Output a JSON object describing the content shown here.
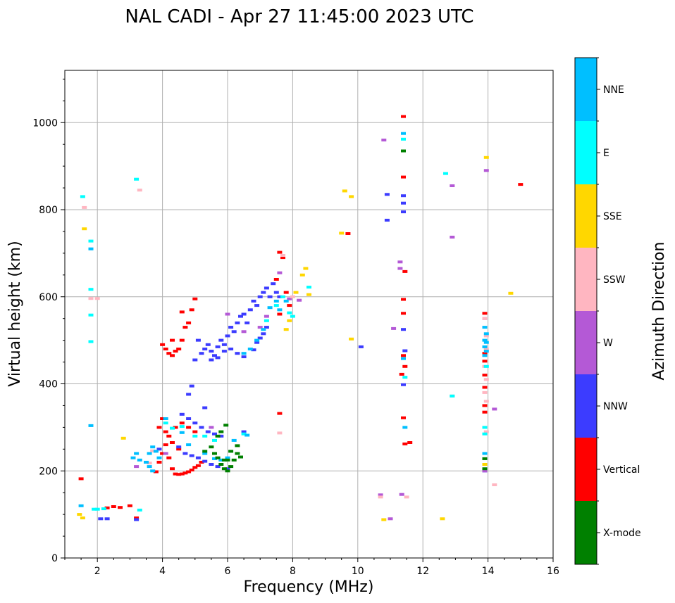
{
  "chart_data": {
    "type": "scatter",
    "title": "NAL CADI - Apr 27 11:45:00 2023 UTC",
    "xlabel": "Frequency (MHz)",
    "ylabel": "Virtual height (km)",
    "xlim": [
      1,
      16
    ],
    "ylim": [
      0,
      1120
    ],
    "xticks": [
      2,
      4,
      6,
      8,
      10,
      12,
      14,
      16
    ],
    "yticks": [
      0,
      200,
      400,
      600,
      800,
      1000
    ],
    "grid": true,
    "colorbar": {
      "label": "Azimuth Direction",
      "position": "right",
      "categories": [
        {
          "name": "X-mode",
          "color": "#008000"
        },
        {
          "name": "Vertical",
          "color": "#ff0000"
        },
        {
          "name": "NNW",
          "color": "#3c3cff"
        },
        {
          "name": "W",
          "color": "#b459d6"
        },
        {
          "name": "SSW",
          "color": "#ffb6c1"
        },
        {
          "name": "SSE",
          "color": "#ffd700"
        },
        {
          "name": "E",
          "color": "#00ffff"
        },
        {
          "name": "NNE",
          "color": "#00bfff"
        }
      ]
    },
    "series": [
      {
        "name": "Vertical",
        "points": [
          [
            1.5,
            182
          ],
          [
            2.3,
            115
          ],
          [
            2.5,
            118
          ],
          [
            2.7,
            116
          ],
          [
            3.0,
            120
          ],
          [
            3.2,
            92
          ],
          [
            3.8,
            198
          ],
          [
            3.9,
            220
          ],
          [
            4.0,
            240
          ],
          [
            4.0,
            320
          ],
          [
            4.1,
            260
          ],
          [
            4.2,
            230
          ],
          [
            4.3,
            205
          ],
          [
            4.4,
            193
          ],
          [
            4.5,
            192
          ],
          [
            4.6,
            193
          ],
          [
            4.7,
            195
          ],
          [
            4.8,
            198
          ],
          [
            4.9,
            202
          ],
          [
            5.0,
            208
          ],
          [
            5.1,
            212
          ],
          [
            5.2,
            220
          ],
          [
            4.2,
            280
          ],
          [
            4.4,
            300
          ],
          [
            4.6,
            310
          ],
          [
            4.8,
            300
          ],
          [
            5.0,
            290
          ],
          [
            3.9,
            300
          ],
          [
            4.1,
            290
          ],
          [
            4.3,
            265
          ],
          [
            4.5,
            250
          ],
          [
            4.0,
            490
          ],
          [
            4.1,
            480
          ],
          [
            4.2,
            470
          ],
          [
            4.3,
            465
          ],
          [
            4.4,
            475
          ],
          [
            4.5,
            480
          ],
          [
            4.6,
            500
          ],
          [
            4.7,
            530
          ],
          [
            4.8,
            540
          ],
          [
            4.9,
            570
          ],
          [
            5.0,
            595
          ],
          [
            4.6,
            565
          ],
          [
            4.3,
            500
          ],
          [
            7.6,
            702
          ],
          [
            7.7,
            690
          ],
          [
            7.5,
            640
          ],
          [
            7.8,
            610
          ],
          [
            7.9,
            580
          ],
          [
            7.6,
            560
          ],
          [
            9.7,
            745
          ],
          [
            11.4,
            1014
          ],
          [
            11.4,
            875
          ],
          [
            11.45,
            658
          ],
          [
            11.4,
            594
          ],
          [
            11.4,
            562
          ],
          [
            11.35,
            422
          ],
          [
            11.4,
            465
          ],
          [
            11.45,
            440
          ],
          [
            11.4,
            322
          ],
          [
            11.45,
            262
          ],
          [
            11.6,
            265
          ],
          [
            7.6,
            332
          ],
          [
            13.9,
            562
          ],
          [
            13.9,
            470
          ],
          [
            13.9,
            452
          ],
          [
            13.9,
            420
          ],
          [
            13.9,
            392
          ],
          [
            13.9,
            350
          ],
          [
            13.9,
            335
          ],
          [
            15.0,
            858
          ]
        ]
      },
      {
        "name": "NNW",
        "points": [
          [
            2.1,
            90
          ],
          [
            2.3,
            90
          ],
          [
            3.2,
            88
          ],
          [
            5.2,
            470
          ],
          [
            5.3,
            480
          ],
          [
            5.4,
            490
          ],
          [
            5.5,
            475
          ],
          [
            5.6,
            465
          ],
          [
            5.7,
            485
          ],
          [
            5.8,
            500
          ],
          [
            5.9,
            490
          ],
          [
            6.0,
            510
          ],
          [
            6.1,
            530
          ],
          [
            6.2,
            520
          ],
          [
            6.3,
            540
          ],
          [
            6.4,
            555
          ],
          [
            6.5,
            560
          ],
          [
            6.6,
            540
          ],
          [
            6.7,
            570
          ],
          [
            6.8,
            590
          ],
          [
            6.9,
            580
          ],
          [
            7.0,
            600
          ],
          [
            7.1,
            610
          ],
          [
            7.2,
            620
          ],
          [
            7.3,
            600
          ],
          [
            7.4,
            630
          ],
          [
            7.5,
            610
          ],
          [
            7.6,
            600
          ],
          [
            6.8,
            478
          ],
          [
            6.9,
            495
          ],
          [
            7.0,
            505
          ],
          [
            7.1,
            515
          ],
          [
            7.2,
            530
          ],
          [
            6.5,
            462
          ],
          [
            6.3,
            470
          ],
          [
            6.1,
            480
          ],
          [
            5.9,
            475
          ],
          [
            5.7,
            460
          ],
          [
            5.5,
            455
          ],
          [
            5.1,
            500
          ],
          [
            5.0,
            455
          ],
          [
            4.6,
            330
          ],
          [
            4.8,
            320
          ],
          [
            5.0,
            310
          ],
          [
            5.2,
            300
          ],
          [
            5.4,
            290
          ],
          [
            5.6,
            285
          ],
          [
            5.8,
            280
          ],
          [
            5.3,
            345
          ],
          [
            4.9,
            395
          ],
          [
            4.8,
            376
          ],
          [
            3.9,
            250
          ],
          [
            4.5,
            255
          ],
          [
            4.7,
            240
          ],
          [
            4.9,
            235
          ],
          [
            5.1,
            230
          ],
          [
            5.3,
            222
          ],
          [
            5.5,
            215
          ],
          [
            5.7,
            210
          ],
          [
            6.0,
            205
          ],
          [
            6.5,
            290
          ],
          [
            10.1,
            485
          ],
          [
            10.9,
            835
          ],
          [
            10.9,
            776
          ],
          [
            11.4,
            832
          ],
          [
            11.4,
            815
          ],
          [
            11.4,
            795
          ],
          [
            11.45,
            476
          ],
          [
            11.4,
            398
          ],
          [
            11.4,
            525
          ],
          [
            13.9,
            200
          ]
        ]
      },
      {
        "name": "W",
        "points": [
          [
            3.2,
            210
          ],
          [
            4.1,
            240
          ],
          [
            5.5,
            300
          ],
          [
            6.0,
            560
          ],
          [
            6.5,
            520
          ],
          [
            7.0,
            530
          ],
          [
            7.2,
            555
          ],
          [
            7.6,
            655
          ],
          [
            7.9,
            595
          ],
          [
            8.2,
            592
          ],
          [
            10.8,
            960
          ],
          [
            10.7,
            145
          ],
          [
            11.1,
            527
          ],
          [
            11.3,
            680
          ],
          [
            11.3,
            665
          ],
          [
            11.35,
            146
          ],
          [
            11.0,
            90
          ],
          [
            12.9,
            855
          ],
          [
            12.9,
            737
          ],
          [
            13.95,
            890
          ],
          [
            14.2,
            342
          ],
          [
            13.9,
            550
          ],
          [
            13.9,
            200
          ]
        ]
      },
      {
        "name": "SSW",
        "points": [
          [
            1.6,
            805
          ],
          [
            1.8,
            596
          ],
          [
            2.0,
            596
          ],
          [
            3.3,
            845
          ],
          [
            3.6,
            218
          ],
          [
            3.7,
            246
          ],
          [
            7.6,
            287
          ],
          [
            7.7,
            695
          ],
          [
            8.0,
            600
          ],
          [
            10.7,
            140
          ],
          [
            11.5,
            140
          ],
          [
            13.9,
            550
          ],
          [
            13.95,
            510
          ],
          [
            13.95,
            480
          ],
          [
            13.9,
            440
          ],
          [
            13.95,
            410
          ],
          [
            13.9,
            380
          ],
          [
            13.95,
            360
          ],
          [
            13.9,
            300
          ],
          [
            13.95,
            290
          ],
          [
            14.2,
            168
          ],
          [
            12.9,
            372
          ]
        ]
      },
      {
        "name": "SSE",
        "points": [
          [
            1.6,
            756
          ],
          [
            1.45,
            100
          ],
          [
            1.55,
            92
          ],
          [
            2.8,
            275
          ],
          [
            7.8,
            525
          ],
          [
            7.9,
            545
          ],
          [
            8.1,
            610
          ],
          [
            8.3,
            650
          ],
          [
            8.4,
            665
          ],
          [
            8.5,
            605
          ],
          [
            9.6,
            843
          ],
          [
            9.8,
            830
          ],
          [
            9.5,
            746
          ],
          [
            9.8,
            503
          ],
          [
            10.8,
            88
          ],
          [
            12.6,
            90
          ],
          [
            13.95,
            920
          ],
          [
            14.7,
            608
          ],
          [
            13.9,
            215
          ]
        ]
      },
      {
        "name": "E",
        "points": [
          [
            1.55,
            830
          ],
          [
            1.8,
            728
          ],
          [
            1.8,
            617
          ],
          [
            1.8,
            558
          ],
          [
            1.8,
            497
          ],
          [
            1.9,
            112
          ],
          [
            2.0,
            112
          ],
          [
            2.2,
            113
          ],
          [
            3.2,
            870
          ],
          [
            3.3,
            110
          ],
          [
            4.1,
            310
          ],
          [
            4.3,
            298
          ],
          [
            4.6,
            302
          ],
          [
            5.0,
            280
          ],
          [
            5.3,
            280
          ],
          [
            5.6,
            270
          ],
          [
            6.5,
            285
          ],
          [
            7.2,
            545
          ],
          [
            7.5,
            580
          ],
          [
            7.7,
            600
          ],
          [
            7.9,
            563
          ],
          [
            8.0,
            555
          ],
          [
            8.5,
            622
          ],
          [
            11.4,
            962
          ],
          [
            11.45,
            415
          ],
          [
            12.7,
            883
          ],
          [
            13.95,
            440
          ],
          [
            13.9,
            300
          ],
          [
            13.9,
            285
          ],
          [
            12.9,
            372
          ]
        ]
      },
      {
        "name": "NNE",
        "points": [
          [
            1.5,
            120
          ],
          [
            1.8,
            710
          ],
          [
            1.8,
            304
          ],
          [
            3.1,
            230
          ],
          [
            3.2,
            240
          ],
          [
            3.3,
            225
          ],
          [
            3.5,
            220
          ],
          [
            3.6,
            240
          ],
          [
            3.7,
            255
          ],
          [
            3.8,
            245
          ],
          [
            3.7,
            200
          ],
          [
            3.6,
            210
          ],
          [
            3.9,
            230
          ],
          [
            4.1,
            320
          ],
          [
            4.6,
            288
          ],
          [
            4.8,
            260
          ],
          [
            5.3,
            240
          ],
          [
            5.6,
            228
          ],
          [
            5.8,
            225
          ],
          [
            6.0,
            230
          ],
          [
            6.2,
            270
          ],
          [
            6.6,
            282
          ],
          [
            6.5,
            470
          ],
          [
            6.7,
            480
          ],
          [
            6.9,
            500
          ],
          [
            7.1,
            525
          ],
          [
            7.3,
            575
          ],
          [
            7.5,
            590
          ],
          [
            7.6,
            570
          ],
          [
            7.8,
            590
          ],
          [
            11.4,
            975
          ],
          [
            11.45,
            300
          ],
          [
            11.4,
            458
          ],
          [
            13.9,
            530
          ],
          [
            13.95,
            515
          ],
          [
            13.9,
            500
          ],
          [
            13.95,
            495
          ],
          [
            13.9,
            485
          ],
          [
            13.95,
            475
          ],
          [
            13.9,
            465
          ],
          [
            13.9,
            240
          ]
        ]
      },
      {
        "name": "X-mode",
        "points": [
          [
            5.6,
            240
          ],
          [
            5.7,
            230
          ],
          [
            5.8,
            215
          ],
          [
            5.9,
            205
          ],
          [
            6.0,
            200
          ],
          [
            6.1,
            210
          ],
          [
            6.2,
            225
          ],
          [
            6.3,
            240
          ],
          [
            6.4,
            232
          ],
          [
            6.1,
            245
          ],
          [
            6.0,
            225
          ],
          [
            5.9,
            225
          ],
          [
            6.3,
            258
          ],
          [
            5.95,
            305
          ],
          [
            5.8,
            290
          ],
          [
            5.7,
            280
          ],
          [
            5.5,
            255
          ],
          [
            5.3,
            245
          ],
          [
            11.4,
            935
          ],
          [
            13.9,
            228
          ],
          [
            13.9,
            205
          ]
        ]
      }
    ]
  }
}
